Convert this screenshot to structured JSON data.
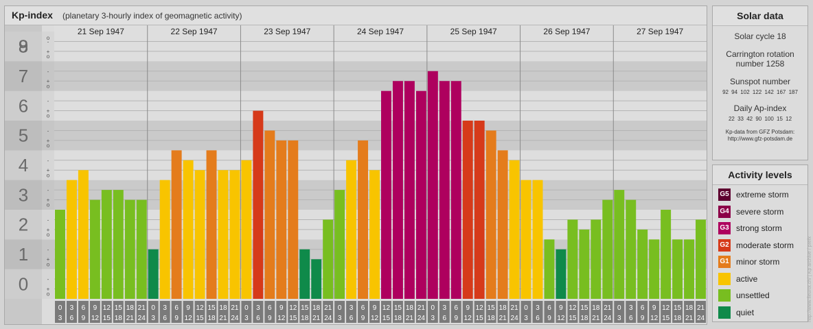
{
  "header": {
    "title": "Kp-index",
    "subtitle": "(planetary 3-hourly index of geomagnetic activity)"
  },
  "chart_data": {
    "type": "bar",
    "title": "Kp-index",
    "subtitle": "(planetary 3-hourly index of geomagnetic activity)",
    "ylim": [
      0,
      9
    ],
    "y_ticks": [
      "0",
      "1",
      "2",
      "3",
      "4",
      "5",
      "6",
      "7",
      "8",
      "9"
    ],
    "minor_tick_labels": [
      "o",
      "+",
      "-"
    ],
    "days": [
      "21 Sep 1947",
      "22 Sep 1947",
      "23 Sep 1947",
      "24 Sep 1947",
      "25 Sep 1947",
      "26 Sep 1947",
      "27 Sep 1947"
    ],
    "interval_labels": [
      [
        "0",
        "3"
      ],
      [
        "3",
        "6"
      ],
      [
        "6",
        "9"
      ],
      [
        "9",
        "12"
      ],
      [
        "12",
        "15"
      ],
      [
        "15",
        "18"
      ],
      [
        "18",
        "21"
      ],
      [
        "21",
        "24"
      ]
    ],
    "values": [
      [
        3.0,
        4.0,
        4.333,
        3.333,
        3.667,
        3.667,
        3.333,
        3.333
      ],
      [
        1.667,
        4.0,
        5.0,
        4.667,
        4.333,
        5.0,
        4.333,
        4.333
      ],
      [
        4.667,
        6.333,
        5.667,
        5.333,
        5.333,
        1.667,
        1.333,
        2.667
      ],
      [
        3.667,
        4.667,
        5.333,
        4.333,
        7.0,
        7.333,
        7.333,
        7.0
      ],
      [
        7.667,
        7.333,
        7.333,
        6.0,
        6.0,
        5.667,
        5.0,
        4.667
      ],
      [
        4.0,
        4.0,
        2.0,
        1.667,
        2.667,
        2.333,
        2.667,
        3.333
      ],
      [
        3.667,
        3.333,
        2.333,
        2.0,
        3.0,
        2.0,
        2.0,
        2.667
      ]
    ],
    "colors": {
      "G5": "#5e0030",
      "G4": "#8c0048",
      "G3": "#ae005e",
      "G2": "#d63a1a",
      "G1": "#e47c1c",
      "active": "#f8c400",
      "unsettled": "#78be20",
      "quiet": "#0f8a4a"
    },
    "grid": true
  },
  "solar": {
    "title": "Solar data",
    "cycle": "Solar cycle 18",
    "carrington_line1": "Carrington rotation",
    "carrington_line2": "number 1258",
    "sunspot_label": "Sunspot number",
    "sunspot_values": "92   94  102  122  142  167  187",
    "ap_label": "Daily Ap-index",
    "ap_values": "22   33   42   90  100   15   12",
    "credit1": "Kp-data from GFZ Potsdam:",
    "credit2": "http://www.gfz-potsdam.de"
  },
  "activity": {
    "title": "Activity levels",
    "items": [
      {
        "badge": "G5",
        "label": "extreme storm",
        "color": "#5e0030"
      },
      {
        "badge": "G4",
        "label": "severe storm",
        "color": "#8c0048"
      },
      {
        "badge": "G3",
        "label": "strong storm",
        "color": "#ae005e"
      },
      {
        "badge": "G2",
        "label": "moderate storm",
        "color": "#d63a1a"
      },
      {
        "badge": "G1",
        "label": "minor storm",
        "color": "#e47c1c"
      },
      {
        "badge": "",
        "label": "active",
        "color": "#f8c400"
      },
      {
        "badge": "",
        "label": "unsettled",
        "color": "#78be20"
      },
      {
        "badge": "",
        "label": "quiet",
        "color": "#0f8a4a"
      }
    ]
  },
  "side_url": "http://www.fleurot.ch/ | Kp archive / prefx"
}
